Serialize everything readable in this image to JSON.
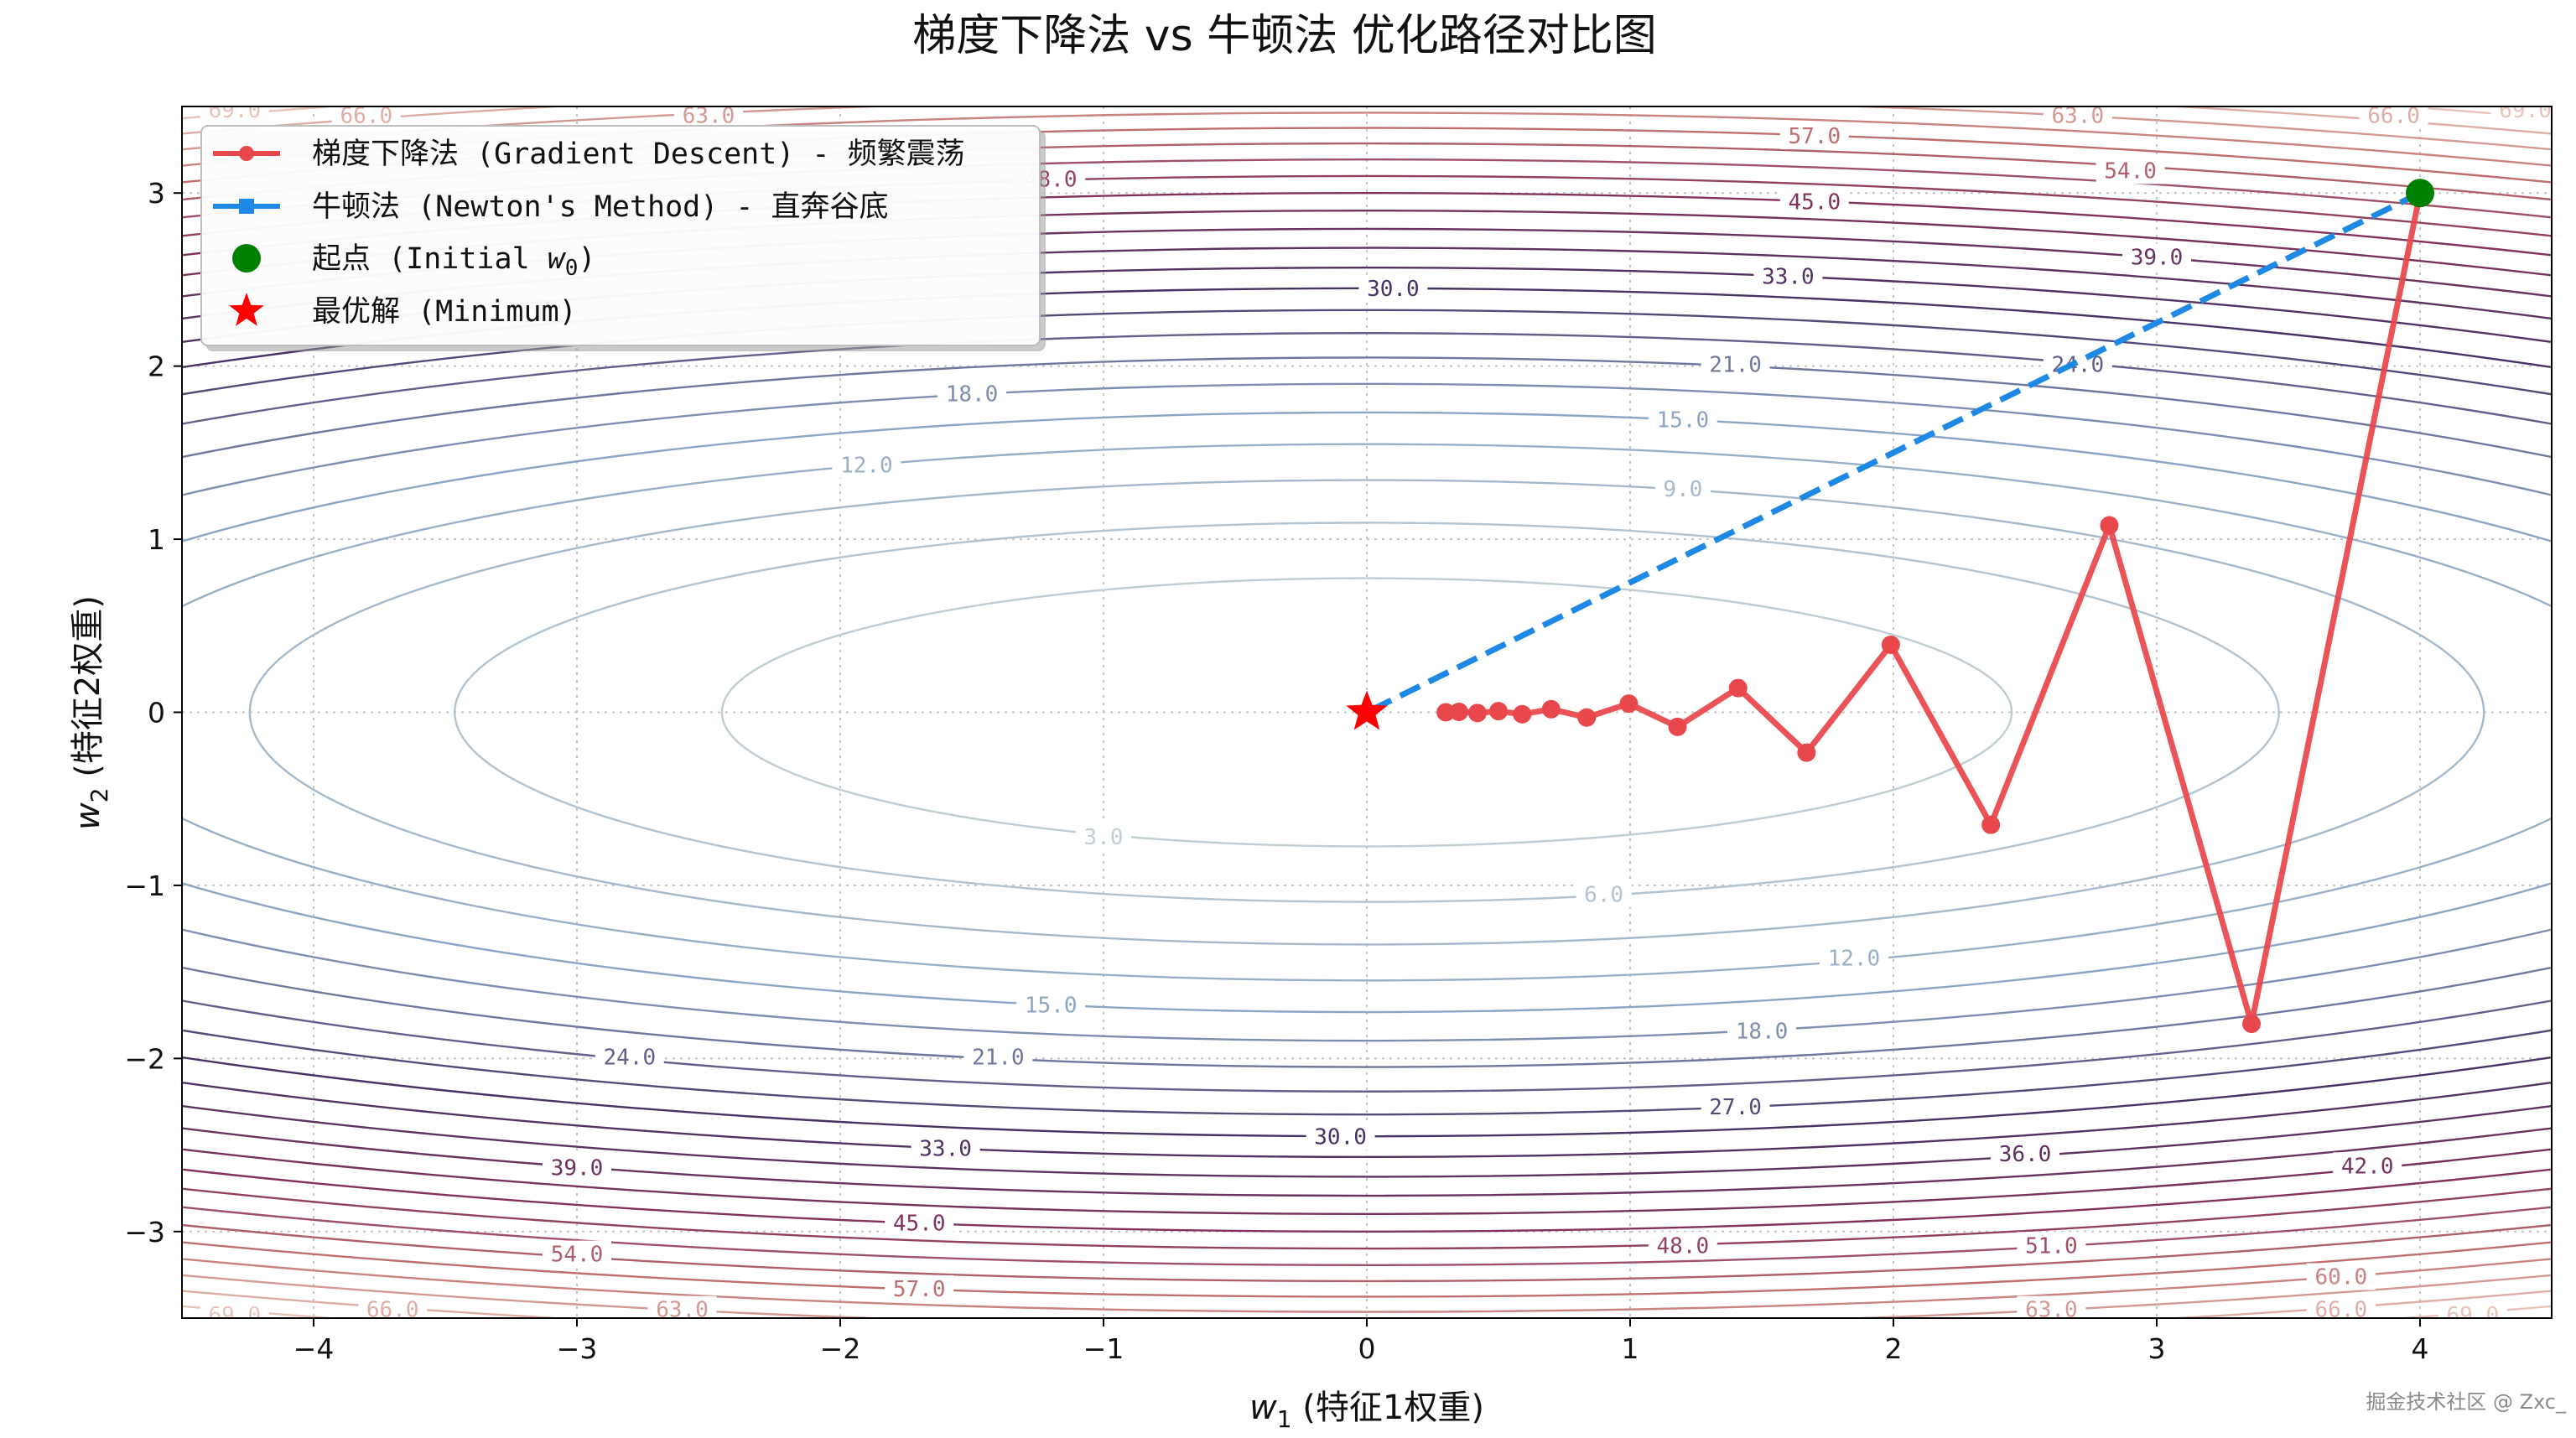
{
  "chart_data": {
    "type": "line",
    "title": "梯度下降法 vs 牛顿法 优化路径对比图",
    "xlabel_symbol": "w",
    "xlabel_sub": "1",
    "xlabel_text": " (特征1权重)",
    "ylabel_symbol": "w",
    "ylabel_sub": "2",
    "ylabel_text": " (特征2权重)",
    "xlim": [
      -4.5,
      4.5
    ],
    "ylim": [
      -3.5,
      3.5
    ],
    "xticks": [
      -4,
      -3,
      -2,
      -1,
      0,
      1,
      2,
      3,
      4
    ],
    "xtick_labels": [
      "−4",
      "−3",
      "−2",
      "−1",
      "0",
      "1",
      "2",
      "3",
      "4"
    ],
    "yticks": [
      -3,
      -2,
      -1,
      0,
      1,
      2,
      3
    ],
    "ytick_labels": [
      "−3",
      "−2",
      "−1",
      "0",
      "1",
      "2",
      "3"
    ],
    "grid": true,
    "legend_position": "top-left",
    "contour": {
      "function": "f = 0.5*w1^2 + 5*w2^2",
      "levels": [
        3,
        6,
        9,
        12,
        15,
        18,
        21,
        24,
        27,
        30,
        33,
        36,
        39,
        42,
        45,
        48,
        51,
        54,
        57,
        60,
        63,
        66,
        69
      ],
      "labels": [
        {
          "text": "3.0",
          "x": -1.0,
          "y": -0.72
        },
        {
          "text": "6.0",
          "x": 0.9,
          "y": -1.05
        },
        {
          "text": "9.0",
          "x": 1.2,
          "y": 1.29
        },
        {
          "text": "12.0",
          "x": -1.9,
          "y": 1.43
        },
        {
          "text": "12.0",
          "x": 1.85,
          "y": -1.42
        },
        {
          "text": "15.0",
          "x": 1.2,
          "y": 1.69
        },
        {
          "text": "15.0",
          "x": -1.2,
          "y": -1.69
        },
        {
          "text": "18.0",
          "x": -1.5,
          "y": 1.84
        },
        {
          "text": "18.0",
          "x": 1.5,
          "y": -1.84
        },
        {
          "text": "21.0",
          "x": 1.4,
          "y": 2.01
        },
        {
          "text": "21.0",
          "x": -1.4,
          "y": -1.99
        },
        {
          "text": "24.0",
          "x": 2.7,
          "y": 2.01
        },
        {
          "text": "24.0",
          "x": -2.8,
          "y": -1.99
        },
        {
          "text": "27.0",
          "x": 1.4,
          "y": -2.28
        },
        {
          "text": "30.0",
          "x": 0.1,
          "y": 2.45
        },
        {
          "text": "30.0",
          "x": -0.1,
          "y": -2.45
        },
        {
          "text": "33.0",
          "x": 1.6,
          "y": 2.52
        },
        {
          "text": "33.0",
          "x": -1.6,
          "y": -2.52
        },
        {
          "text": "36.0",
          "x": 2.5,
          "y": -2.55
        },
        {
          "text": "39.0",
          "x": 3.0,
          "y": 2.63
        },
        {
          "text": "39.0",
          "x": -3.0,
          "y": -2.63
        },
        {
          "text": "42.0",
          "x": 3.8,
          "y": -2.62
        },
        {
          "text": "45.0",
          "x": 1.7,
          "y": 2.95
        },
        {
          "text": "45.0",
          "x": -1.7,
          "y": -2.95
        },
        {
          "text": "48.0",
          "x": -1.2,
          "y": 3.08
        },
        {
          "text": "48.0",
          "x": 1.2,
          "y": -3.08
        },
        {
          "text": "51.0",
          "x": 2.6,
          "y": -3.08
        },
        {
          "text": "54.0",
          "x": 2.9,
          "y": 3.13
        },
        {
          "text": "54.0",
          "x": -3.0,
          "y": -3.13
        },
        {
          "text": "57.0",
          "x": 1.7,
          "y": 3.33
        },
        {
          "text": "57.0",
          "x": -1.7,
          "y": -3.33
        },
        {
          "text": "60.0",
          "x": 3.7,
          "y": -3.26
        },
        {
          "text": "63.0",
          "x": -2.5,
          "y": 3.45
        },
        {
          "text": "63.0",
          "x": 2.7,
          "y": 3.45
        },
        {
          "text": "63.0",
          "x": -2.6,
          "y": -3.45
        },
        {
          "text": "63.0",
          "x": 2.6,
          "y": -3.45
        },
        {
          "text": "66.0",
          "x": -3.8,
          "y": 3.45
        },
        {
          "text": "66.0",
          "x": 3.9,
          "y": 3.45
        },
        {
          "text": "66.0",
          "x": -3.7,
          "y": -3.45
        },
        {
          "text": "66.0",
          "x": 3.7,
          "y": -3.45
        },
        {
          "text": "69.0",
          "x": -4.3,
          "y": 3.48
        },
        {
          "text": "69.0",
          "x": 4.4,
          "y": 3.48
        },
        {
          "text": "69.0",
          "x": -4.3,
          "y": -3.48
        },
        {
          "text": "69.0",
          "x": 4.2,
          "y": -3.48
        }
      ]
    },
    "series": [
      {
        "name": "梯度下降法 (Gradient Descent) - 频繁震荡",
        "color": "#e8474c",
        "marker": "circle",
        "linestyle": "solid",
        "x": [
          4.0,
          3.36,
          2.82,
          2.37,
          1.99,
          1.67,
          1.41,
          1.18,
          0.995,
          0.835,
          0.7,
          0.59,
          0.5,
          0.42,
          0.35,
          0.3
        ],
        "y": [
          3.0,
          -1.8,
          1.08,
          -0.65,
          0.39,
          -0.233,
          0.14,
          -0.084,
          0.05,
          -0.03,
          0.018,
          -0.011,
          0.0065,
          -0.004,
          0.0024,
          0.0
        ]
      },
      {
        "name": "牛顿法 (Newton's Method) - 直奔谷底",
        "color": "#1e88e5",
        "marker": "square",
        "linestyle": "dashed",
        "x": [
          4.0,
          0.0
        ],
        "y": [
          3.0,
          0.0
        ]
      }
    ],
    "points": [
      {
        "name_prefix": "起点 (Initial ",
        "name_symbol": "w",
        "name_sub": "0",
        "name_suffix": ")",
        "color": "#008000",
        "marker": "circle",
        "x": 4.0,
        "y": 3.0
      },
      {
        "name": "最优解 (Minimum)",
        "color": "#ff0000",
        "marker": "star",
        "x": 0.0,
        "y": 0.0
      }
    ]
  },
  "watermark": "掘金技术社区 @ Zxc_"
}
